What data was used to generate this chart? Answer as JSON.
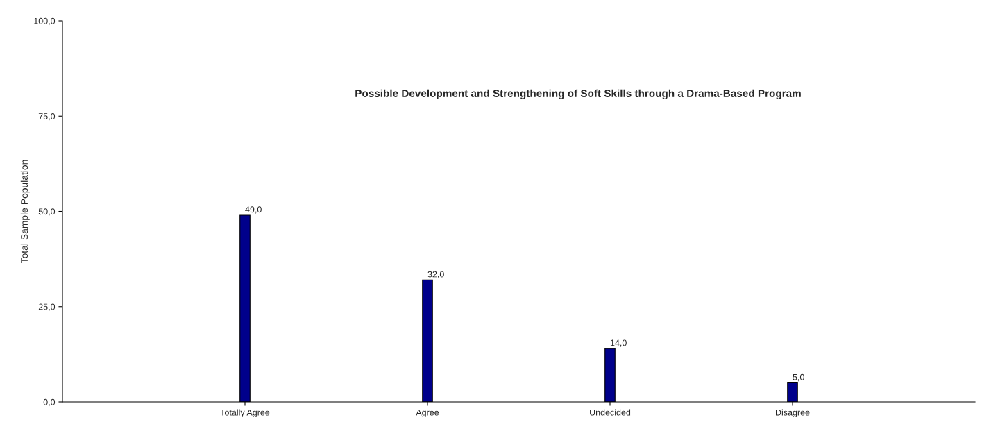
{
  "chart_data": {
    "type": "bar",
    "title": "Possible Development and Strengthening of Soft Skills through a Drama-Based Program",
    "ylabel": "Total Sample Population",
    "categories": [
      "Totally Agree",
      "Agree",
      "Undecided",
      "Disagree"
    ],
    "values": [
      49,
      32,
      14,
      5
    ],
    "color": "#00008b",
    "value_labels": [
      "49,0",
      "32,0",
      "14,0",
      "5,0"
    ],
    "ylim": [
      0,
      100
    ],
    "yticks": [
      {
        "value": 0,
        "label": "0,0"
      },
      {
        "value": 25,
        "label": "25,0"
      },
      {
        "value": 50,
        "label": "50,0"
      },
      {
        "value": 75,
        "label": "75,0"
      },
      {
        "value": 100,
        "label": "100,0"
      }
    ],
    "grid": false,
    "legend": false
  }
}
